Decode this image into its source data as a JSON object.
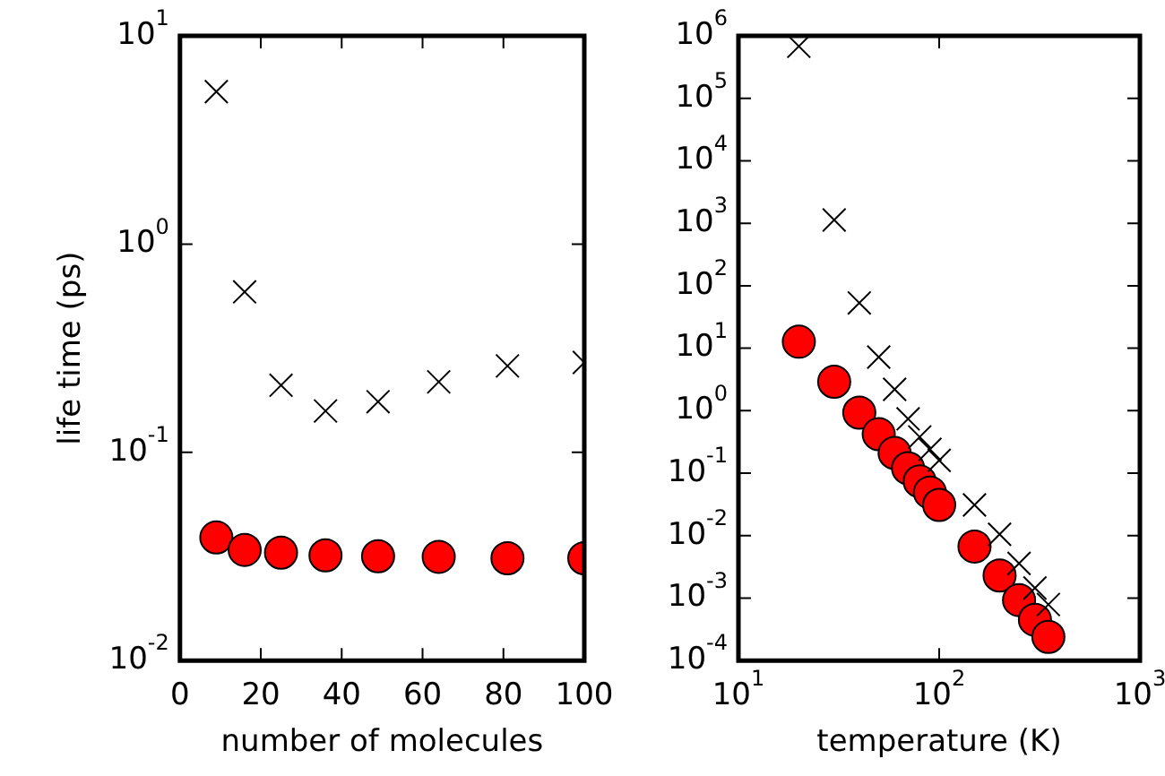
{
  "chart_data": [
    {
      "type": "scatter",
      "xlabel": "number of molecules",
      "ylabel": "life time (ps)",
      "log": "y",
      "grid": false,
      "legend": false,
      "xlim": [
        0,
        100
      ],
      "xticks": [
        0,
        20,
        40,
        60,
        80,
        100
      ],
      "ylim": [
        0.01,
        10
      ],
      "yticks": [
        {
          "value": 0.01,
          "label": "10$^{-2}$"
        },
        {
          "value": 0.1,
          "label": "10$^{-1}$"
        },
        {
          "value": 1,
          "label": "10$^{0}$"
        },
        {
          "value": 10,
          "label": "10$^{1}$"
        }
      ],
      "series": [
        {
          "color": "#000000",
          "marker": "cross",
          "x": [
            9,
            16,
            25,
            36,
            49,
            64,
            81,
            100
          ],
          "values": [
            5.4,
            0.59,
            0.21,
            0.158,
            0.175,
            0.218,
            0.26,
            0.27
          ]
        },
        {
          "color": "#ff0000",
          "marker": "circle",
          "x": [
            9,
            16,
            25,
            36,
            49,
            64,
            81,
            100
          ],
          "values": [
            0.039,
            0.034,
            0.033,
            0.032,
            0.0317,
            0.0315,
            0.031,
            0.031
          ]
        }
      ]
    },
    {
      "type": "scatter",
      "xlabel": "temperature (K)",
      "log": "xy",
      "grid": false,
      "legend": false,
      "xlim": [
        10,
        1000
      ],
      "xticks": [
        {
          "value": 10,
          "label": "10$^{1}$"
        },
        {
          "value": 100,
          "label": "10$^{2}$"
        },
        {
          "value": 1000,
          "label": "10$^{3}$"
        }
      ],
      "ylim": [
        0.0001,
        1000000
      ],
      "yticks": [
        {
          "value": 0.0001,
          "label": "10$^{-4}$"
        },
        {
          "value": 0.001,
          "label": "10$^{-3}$"
        },
        {
          "value": 0.01,
          "label": "10$^{-2}$"
        },
        {
          "value": 0.1,
          "label": "10$^{-1}$"
        },
        {
          "value": 1,
          "label": "10$^{0}$"
        },
        {
          "value": 10,
          "label": "10$^{1}$"
        },
        {
          "value": 100,
          "label": "10$^{2}$"
        },
        {
          "value": 1000,
          "label": "10$^{3}$"
        },
        {
          "value": 10000,
          "label": "10$^{4}$"
        },
        {
          "value": 100000,
          "label": "10$^{5}$"
        },
        {
          "value": 1000000,
          "label": "10$^{6}$"
        }
      ],
      "series": [
        {
          "color": "#000000",
          "marker": "cross",
          "x": [
            20,
            30,
            40,
            50,
            60,
            70,
            80,
            90,
            100,
            150,
            200,
            250,
            300,
            350
          ],
          "values": [
            680000,
            1130,
            53,
            7.2,
            2.2,
            0.74,
            0.38,
            0.24,
            0.16,
            0.031,
            0.0105,
            0.0036,
            0.00145,
            0.00079
          ]
        },
        {
          "color": "#ff0000",
          "marker": "circle",
          "x": [
            20,
            30,
            40,
            50,
            60,
            70,
            80,
            90,
            100,
            150,
            200,
            250,
            300,
            350
          ],
          "values": [
            12.7,
            2.9,
            0.93,
            0.42,
            0.21,
            0.12,
            0.074,
            0.049,
            0.031,
            0.0067,
            0.0023,
            0.00093,
            0.00045,
            0.00024
          ]
        }
      ]
    }
  ]
}
